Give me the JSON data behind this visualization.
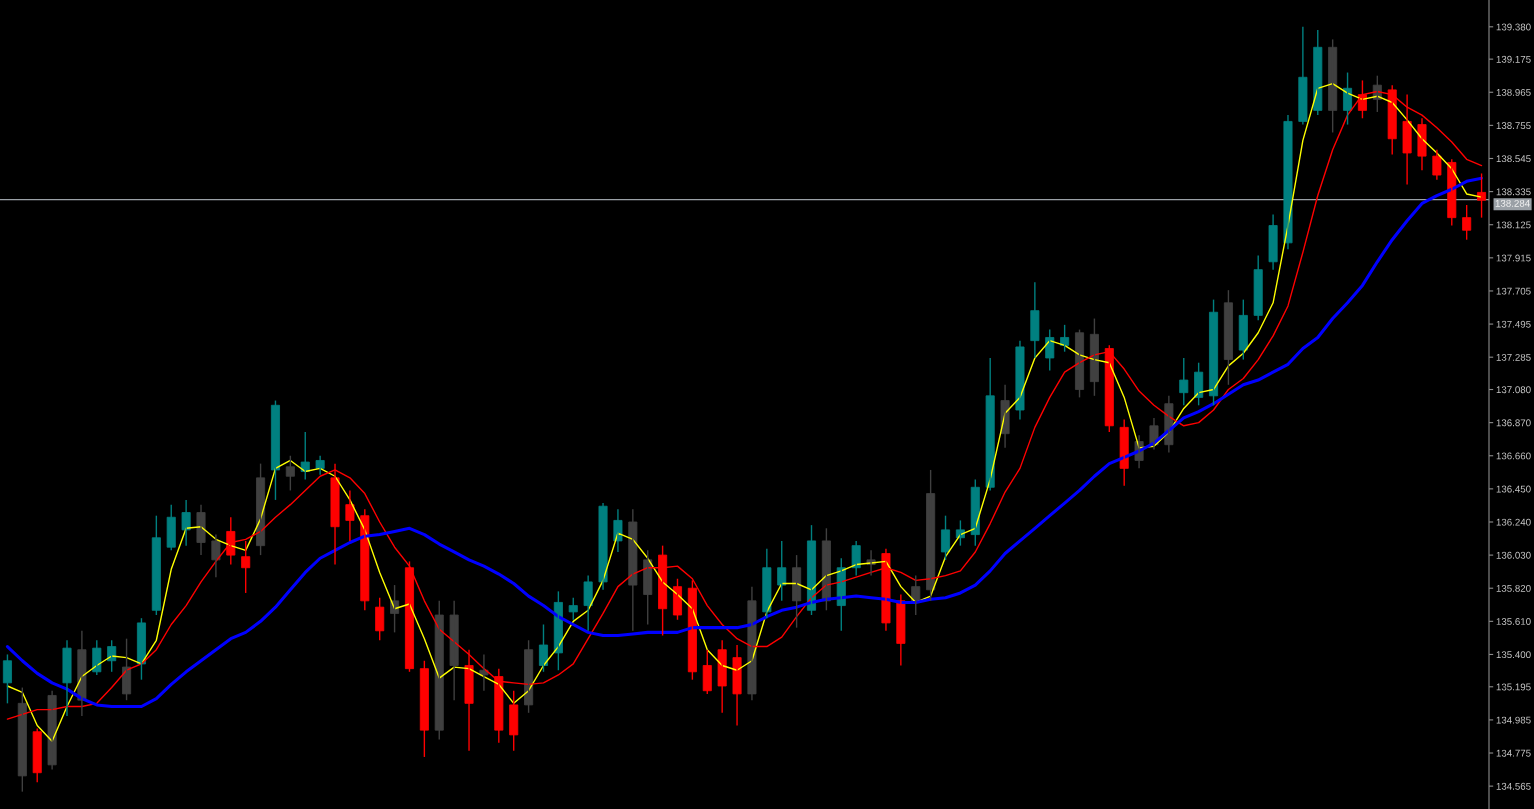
{
  "chart_data": {
    "type": "candlestick",
    "categories": [
      null,
      null,
      null,
      null,
      null,
      null,
      null,
      null,
      null,
      null,
      null,
      null,
      null,
      null,
      null,
      null,
      null,
      null,
      null,
      null,
      null,
      null,
      null,
      null,
      null,
      null,
      null,
      null,
      null,
      null,
      null,
      null,
      null,
      null,
      null,
      null,
      null,
      null,
      null,
      null,
      null,
      null,
      null,
      null,
      null,
      null,
      null,
      null,
      null,
      null,
      null,
      null,
      null,
      null,
      null,
      null,
      null,
      null,
      null,
      null,
      null,
      null,
      null,
      null,
      null,
      null,
      null,
      null,
      null,
      null,
      null,
      null,
      null,
      null,
      null,
      null,
      null,
      null,
      null,
      null,
      null,
      null,
      null,
      null,
      null,
      null,
      null,
      null,
      null,
      null,
      null,
      null,
      null,
      null,
      null,
      null,
      null,
      null,
      null,
      null
    ],
    "ohlc": [
      [
        135.22,
        135.4,
        135.09,
        135.36
      ],
      [
        135.09,
        135.19,
        134.53,
        134.63
      ],
      [
        134.91,
        134.93,
        134.59,
        134.65
      ],
      [
        134.7,
        135.17,
        134.67,
        135.14
      ],
      [
        135.22,
        135.49,
        135.01,
        135.44
      ],
      [
        135.43,
        135.55,
        135.01,
        135.11
      ],
      [
        135.29,
        135.49,
        135.27,
        135.44
      ],
      [
        135.36,
        135.49,
        135.29,
        135.45
      ],
      [
        135.32,
        135.5,
        135.11,
        135.15
      ],
      [
        135.34,
        135.63,
        135.24,
        135.6
      ],
      [
        135.68,
        136.28,
        135.65,
        136.14
      ],
      [
        136.08,
        136.35,
        136.06,
        136.27
      ],
      [
        136.19,
        136.38,
        136.09,
        136.3
      ],
      [
        136.3,
        136.35,
        136.03,
        136.11
      ],
      [
        136.12,
        136.16,
        135.89,
        136.0
      ],
      [
        136.18,
        136.27,
        135.97,
        136.03
      ],
      [
        136.02,
        136.12,
        135.79,
        135.95
      ],
      [
        136.09,
        136.61,
        136.03,
        136.52
      ],
      [
        136.57,
        137.01,
        136.38,
        136.98
      ],
      [
        136.59,
        136.66,
        136.44,
        136.53
      ],
      [
        136.56,
        136.81,
        136.51,
        136.62
      ],
      [
        136.58,
        136.66,
        136.54,
        136.63
      ],
      [
        136.52,
        136.61,
        135.97,
        136.21
      ],
      [
        136.35,
        136.44,
        136.12,
        136.25
      ],
      [
        136.28,
        136.32,
        135.68,
        135.74
      ],
      [
        135.7,
        135.76,
        135.49,
        135.55
      ],
      [
        135.66,
        135.84,
        135.54,
        135.74
      ],
      [
        135.95,
        135.99,
        135.29,
        135.31
      ],
      [
        135.31,
        135.36,
        134.75,
        134.92
      ],
      [
        134.92,
        135.74,
        134.86,
        135.65
      ],
      [
        135.65,
        135.74,
        135.11,
        135.33
      ],
      [
        135.33,
        135.43,
        134.79,
        135.09
      ],
      [
        135.27,
        135.4,
        135.17,
        135.3
      ],
      [
        135.26,
        135.31,
        134.84,
        134.92
      ],
      [
        135.08,
        135.17,
        134.79,
        134.89
      ],
      [
        135.08,
        135.49,
        135.03,
        135.43
      ],
      [
        135.33,
        135.59,
        135.29,
        135.46
      ],
      [
        135.41,
        135.8,
        135.3,
        135.73
      ],
      [
        135.67,
        135.76,
        135.62,
        135.71
      ],
      [
        135.71,
        135.9,
        135.55,
        135.86
      ],
      [
        135.86,
        136.36,
        135.81,
        136.34
      ],
      [
        136.12,
        136.32,
        136.05,
        136.25
      ],
      [
        136.24,
        136.32,
        135.55,
        135.84
      ],
      [
        135.78,
        136.06,
        135.59,
        136.0
      ],
      [
        136.03,
        136.09,
        135.52,
        135.69
      ],
      [
        135.83,
        135.88,
        135.62,
        135.65
      ],
      [
        135.82,
        135.87,
        135.24,
        135.29
      ],
      [
        135.33,
        135.43,
        135.15,
        135.17
      ],
      [
        135.43,
        135.49,
        135.03,
        135.2
      ],
      [
        135.38,
        135.46,
        134.95,
        135.15
      ],
      [
        135.15,
        135.83,
        135.11,
        135.74
      ],
      [
        135.67,
        136.07,
        135.63,
        135.95
      ],
      [
        135.84,
        136.12,
        135.74,
        135.95
      ],
      [
        135.95,
        136.03,
        135.57,
        135.74
      ],
      [
        135.68,
        136.22,
        135.65,
        136.12
      ],
      [
        136.12,
        136.2,
        135.68,
        135.74
      ],
      [
        135.71,
        136.01,
        135.55,
        135.95
      ],
      [
        135.95,
        136.12,
        135.9,
        136.09
      ],
      [
        136.0,
        136.06,
        135.9,
        135.97
      ],
      [
        136.04,
        136.07,
        135.55,
        135.6
      ],
      [
        135.74,
        135.78,
        135.33,
        135.47
      ],
      [
        135.73,
        135.9,
        135.65,
        135.83
      ],
      [
        135.81,
        136.57,
        135.74,
        136.42
      ],
      [
        136.05,
        136.28,
        136.0,
        136.19
      ],
      [
        136.14,
        136.25,
        136.09,
        136.19
      ],
      [
        136.16,
        136.51,
        136.09,
        136.46
      ],
      [
        136.46,
        137.28,
        136.44,
        137.04
      ],
      [
        137.01,
        137.11,
        136.71,
        136.8
      ],
      [
        136.95,
        137.39,
        136.89,
        137.35
      ],
      [
        137.39,
        137.76,
        137.28,
        137.58
      ],
      [
        137.28,
        137.46,
        137.2,
        137.41
      ],
      [
        137.36,
        137.49,
        137.32,
        137.41
      ],
      [
        137.44,
        137.46,
        137.03,
        137.08
      ],
      [
        137.13,
        137.53,
        137.04,
        137.43
      ],
      [
        137.34,
        137.36,
        136.81,
        136.85
      ],
      [
        136.84,
        136.89,
        136.47,
        136.58
      ],
      [
        136.63,
        136.79,
        136.58,
        136.75
      ],
      [
        136.73,
        136.9,
        136.7,
        136.85
      ],
      [
        136.73,
        137.04,
        136.68,
        136.99
      ],
      [
        137.06,
        137.28,
        136.98,
        137.14
      ],
      [
        137.03,
        137.25,
        136.98,
        137.19
      ],
      [
        137.04,
        137.65,
        136.98,
        137.57
      ],
      [
        137.63,
        137.71,
        137.11,
        137.27
      ],
      [
        137.33,
        137.65,
        137.27,
        137.55
      ],
      [
        137.55,
        137.93,
        137.52,
        137.84
      ],
      [
        137.89,
        138.19,
        137.84,
        138.12
      ],
      [
        138.01,
        138.82,
        137.97,
        138.78
      ],
      [
        138.78,
        139.38,
        138.76,
        139.06
      ],
      [
        138.85,
        139.36,
        138.82,
        139.25
      ],
      [
        139.25,
        139.3,
        138.71,
        138.85
      ],
      [
        138.85,
        139.09,
        138.76,
        138.99
      ],
      [
        138.95,
        139.04,
        138.8,
        138.85
      ],
      [
        138.92,
        139.07,
        138.84,
        139.01
      ],
      [
        138.98,
        139.01,
        138.57,
        138.67
      ],
      [
        138.78,
        138.95,
        138.38,
        138.58
      ],
      [
        138.76,
        138.8,
        138.47,
        138.56
      ],
      [
        138.56,
        138.6,
        138.41,
        138.44
      ],
      [
        138.52,
        138.54,
        138.12,
        138.17
      ],
      [
        138.17,
        138.25,
        138.03,
        138.09
      ],
      [
        138.33,
        138.45,
        138.17,
        138.28
      ]
    ],
    "colors": [
      "#008080",
      "#404040",
      "#ff0000",
      "#404040",
      "#008080",
      "#404040",
      "#008080",
      "#008080",
      "#404040",
      "#008080",
      "#008080",
      "#008080",
      "#008080",
      "#404040",
      "#404040",
      "#ff0000",
      "#ff0000",
      "#404040",
      "#008080",
      "#404040",
      "#008080",
      "#008080",
      "#ff0000",
      "#ff0000",
      "#ff0000",
      "#ff0000",
      "#404040",
      "#ff0000",
      "#ff0000",
      "#404040",
      "#404040",
      "#ff0000",
      "#404040",
      "#ff0000",
      "#ff0000",
      "#404040",
      "#008080",
      "#008080",
      "#008080",
      "#008080",
      "#008080",
      "#008080",
      "#404040",
      "#404040",
      "#ff0000",
      "#ff0000",
      "#ff0000",
      "#ff0000",
      "#ff0000",
      "#ff0000",
      "#404040",
      "#008080",
      "#008080",
      "#404040",
      "#008080",
      "#404040",
      "#008080",
      "#008080",
      "#404040",
      "#ff0000",
      "#ff0000",
      "#404040",
      "#404040",
      "#008080",
      "#008080",
      "#008080",
      "#008080",
      "#404040",
      "#008080",
      "#008080",
      "#008080",
      "#008080",
      "#404040",
      "#404040",
      "#ff0000",
      "#ff0000",
      "#404040",
      "#404040",
      "#404040",
      "#008080",
      "#008080",
      "#008080",
      "#404040",
      "#008080",
      "#008080",
      "#008080",
      "#008080",
      "#008080",
      "#008080",
      "#404040",
      "#008080",
      "#ff0000",
      "#404040",
      "#ff0000",
      "#ff0000",
      "#ff0000",
      "#ff0000",
      "#ff0000",
      "#ff0000",
      "#ff0000"
    ],
    "series": [
      {
        "type": "line",
        "color": "#ffff00",
        "values": [
          135.2,
          135.16,
          134.95,
          134.85,
          135.07,
          135.26,
          135.33,
          135.39,
          135.38,
          135.34,
          135.49,
          135.94,
          136.2,
          136.21,
          136.13,
          136.09,
          136.06,
          136.26,
          136.58,
          136.63,
          136.56,
          136.58,
          136.53,
          136.38,
          136.19,
          135.92,
          135.69,
          135.72,
          135.5,
          135.25,
          135.32,
          135.31,
          135.26,
          135.21,
          135.09,
          135.17,
          135.33,
          135.45,
          135.61,
          135.68,
          135.87,
          136.17,
          136.13,
          136.01,
          135.86,
          135.78,
          135.69,
          135.43,
          135.33,
          135.3,
          135.36,
          135.67,
          135.85,
          135.85,
          135.81,
          135.9,
          135.93,
          135.97,
          135.98,
          135.99,
          135.83,
          135.73,
          135.77,
          136.02,
          136.16,
          136.2,
          136.51,
          136.93,
          137.03,
          137.28,
          137.39,
          137.36,
          137.3,
          137.27,
          137.25,
          137.03,
          136.71,
          136.72,
          136.81,
          136.96,
          137.06,
          137.08,
          137.23,
          137.31,
          137.44,
          137.63,
          138.12,
          138.66,
          138.99,
          139.02,
          138.96,
          138.92,
          138.94,
          138.9,
          138.79,
          138.67,
          138.58,
          138.48,
          138.32,
          138.3
        ]
      },
      {
        "type": "line",
        "color": "#ff0000",
        "values": [
          134.99,
          135.02,
          135.05,
          135.05,
          135.07,
          135.07,
          135.09,
          135.19,
          135.3,
          135.34,
          135.43,
          135.59,
          135.71,
          135.86,
          135.99,
          136.11,
          136.13,
          136.18,
          136.27,
          136.35,
          136.44,
          136.53,
          136.57,
          136.52,
          136.42,
          136.24,
          136.08,
          135.96,
          135.74,
          135.56,
          135.48,
          135.4,
          135.31,
          135.23,
          135.22,
          135.21,
          135.22,
          135.27,
          135.34,
          135.5,
          135.66,
          135.83,
          135.91,
          135.95,
          135.95,
          135.96,
          135.88,
          135.71,
          135.59,
          135.5,
          135.45,
          135.45,
          135.51,
          135.64,
          135.76,
          135.84,
          135.86,
          135.89,
          135.92,
          135.95,
          135.92,
          135.87,
          135.88,
          135.9,
          135.93,
          136.05,
          136.23,
          136.43,
          136.58,
          136.84,
          137.03,
          137.19,
          137.25,
          137.3,
          137.32,
          137.21,
          137.07,
          136.98,
          136.91,
          136.85,
          136.87,
          136.95,
          137.08,
          137.15,
          137.27,
          137.42,
          137.61,
          137.95,
          138.31,
          138.6,
          138.82,
          138.95,
          138.97,
          138.95,
          138.87,
          138.82,
          138.74,
          138.65,
          138.54,
          138.5
        ]
      },
      {
        "type": "line",
        "color": "#0000ff",
        "values": [
          135.45,
          135.36,
          135.28,
          135.22,
          135.18,
          135.12,
          135.08,
          135.07,
          135.07,
          135.07,
          135.12,
          135.21,
          135.29,
          135.36,
          135.43,
          135.5,
          135.54,
          135.61,
          135.7,
          135.81,
          135.92,
          136.01,
          136.06,
          136.11,
          136.15,
          136.16,
          136.18,
          136.2,
          136.16,
          136.1,
          136.05,
          136.0,
          135.96,
          135.91,
          135.85,
          135.77,
          135.71,
          135.64,
          135.59,
          135.54,
          135.52,
          135.52,
          135.53,
          135.54,
          135.54,
          135.54,
          135.57,
          135.57,
          135.57,
          135.57,
          135.59,
          135.64,
          135.68,
          135.7,
          135.73,
          135.75,
          135.76,
          135.77,
          135.76,
          135.75,
          135.73,
          135.73,
          135.75,
          135.76,
          135.79,
          135.84,
          135.93,
          136.04,
          136.12,
          136.2,
          136.28,
          136.36,
          136.44,
          136.53,
          136.61,
          136.65,
          136.69,
          136.74,
          136.82,
          136.9,
          136.94,
          136.99,
          137.05,
          137.11,
          137.14,
          137.19,
          137.24,
          137.34,
          137.41,
          137.53,
          137.63,
          137.74,
          137.89,
          138.03,
          138.15,
          138.26,
          138.31,
          138.35,
          138.4,
          138.42
        ]
      }
    ],
    "ylim": [
      134.42,
      139.55
    ],
    "yticks": [
      {
        "value": 139.38,
        "label": "139.380"
      },
      139.175,
      138.965,
      138.755,
      138.545,
      138.335,
      138.125,
      137.915,
      137.705,
      137.495,
      137.285,
      {
        "value": 137.08,
        "label": "137.080"
      },
      {
        "value": 136.87,
        "label": "136.870"
      },
      {
        "value": 136.66,
        "label": "136.660"
      },
      {
        "value": 136.45,
        "label": "136.450"
      },
      {
        "value": 136.24,
        "label": "136.240"
      },
      {
        "value": 136.03,
        "label": "136.030"
      },
      {
        "value": 135.82,
        "label": "135.820"
      },
      {
        "value": 135.61,
        "label": "135.610"
      },
      {
        "value": 135.4,
        "label": "135.400"
      },
      135.195,
      134.985,
      134.775,
      134.565
    ],
    "ref_lines": [
      {
        "axis": "y",
        "value": 138.284,
        "label": "138.284",
        "color": "#9aa0a6"
      }
    ],
    "tick_labels": "y"
  }
}
